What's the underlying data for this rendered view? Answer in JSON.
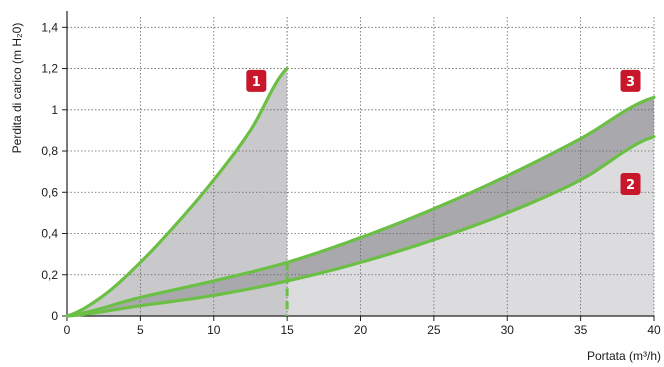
{
  "chart_data": {
    "type": "area",
    "xlabel": "Portata (m³/h)",
    "ylabel": "Perdita di carico (m H₂0)",
    "xlim": [
      0,
      40
    ],
    "ylim": [
      0,
      1.45
    ],
    "x_ticks": [
      0,
      5,
      10,
      15,
      20,
      25,
      30,
      35,
      40
    ],
    "y_ticks": [
      0,
      0.2,
      0.4,
      0.6,
      0.8,
      1,
      1.2,
      1.4
    ],
    "x_tick_labels": [
      "0",
      "5",
      "10",
      "15",
      "20",
      "25",
      "30",
      "35",
      "40"
    ],
    "y_tick_labels": [
      "0",
      "0,2",
      "0,4",
      "0,6",
      "0,8",
      "1",
      "1,2",
      "1,4"
    ],
    "grid": true,
    "colors": {
      "curve": "#6cbf45",
      "band_light": "#dcdcde",
      "band_dark": "#a9a9ad",
      "band_mid": "#c9c9cc",
      "badge": "#c8172a",
      "grid": "#666666"
    },
    "series": [
      {
        "name": "1",
        "x": [
          0,
          2.5,
          5,
          7.5,
          10,
          12.5,
          15
        ],
        "y": [
          0,
          0.1,
          0.26,
          0.45,
          0.66,
          0.9,
          1.2
        ]
      },
      {
        "name": "2",
        "x": [
          0,
          5,
          10,
          15,
          20,
          25,
          30,
          35,
          40
        ],
        "y": [
          0,
          0.05,
          0.1,
          0.17,
          0.26,
          0.37,
          0.5,
          0.66,
          0.87
        ]
      },
      {
        "name": "3",
        "x": [
          0,
          5,
          10,
          15,
          20,
          25,
          30,
          35,
          40
        ],
        "y": [
          0,
          0.09,
          0.17,
          0.26,
          0.38,
          0.52,
          0.68,
          0.86,
          1.06
        ]
      }
    ],
    "marker_line": {
      "x": 15
    }
  }
}
